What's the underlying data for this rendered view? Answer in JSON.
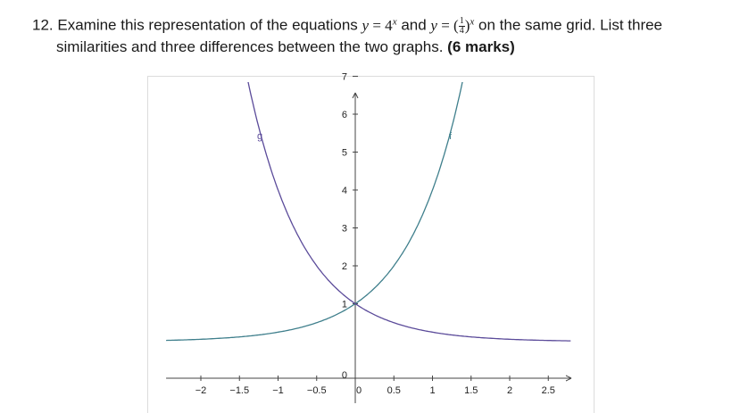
{
  "question": {
    "number": "12.",
    "text_a": "Examine this representation of the equations",
    "eq1_lhs": "y",
    "eq1_eq": " = 4",
    "eq1_exp": "x",
    "text_and": "and",
    "eq2_lhs": "y",
    "eq2_eq": " = (",
    "eq2_num": "1",
    "eq2_den": "4",
    "eq2_close": ")",
    "eq2_exp": "x",
    "text_b": "on the same grid. List three",
    "line2": "similarities and three differences between the two graphs.",
    "marks": "(6 marks)"
  },
  "chart_data": {
    "type": "line",
    "title": "",
    "xlabel": "",
    "ylabel": "",
    "xlim": [
      -2.45,
      2.8
    ],
    "ylim": [
      -0.1,
      7.6
    ],
    "x_ticks": [
      -2,
      -1.5,
      -1,
      -0.5,
      0,
      0.5,
      1,
      1.5,
      2,
      2.5
    ],
    "x_tick_labels": [
      "−2",
      "−1.5",
      "−1",
      "−0.5",
      "0",
      "0.5",
      "1",
      "1.5",
      "2",
      "2.5"
    ],
    "y_ticks": [
      0,
      1,
      2,
      3,
      4,
      5,
      6,
      7
    ],
    "y_tick_labels": [
      "0",
      "1",
      "2",
      "3",
      "4",
      "5",
      "6",
      "7"
    ],
    "grid": false,
    "series": [
      {
        "name": "f",
        "function": "4^x",
        "color": "#3f7f8c",
        "x": [
          -2.45,
          -2.0,
          -1.5,
          -1.0,
          -0.5,
          0.0,
          0.25,
          0.5,
          0.75,
          1.0,
          1.25,
          1.45
        ],
        "y": [
          0.0335,
          0.0625,
          0.125,
          0.25,
          0.5,
          1.0,
          1.414,
          2.0,
          2.828,
          4.0,
          5.657,
          7.464
        ]
      },
      {
        "name": "g",
        "function": "(1/4)^x",
        "color": "#5b4b9a",
        "x": [
          -1.5,
          -1.25,
          -1.0,
          -0.75,
          -0.5,
          -0.25,
          0.0,
          0.5,
          1.0,
          1.5,
          2.0,
          2.5,
          2.8
        ],
        "y": [
          8.0,
          5.657,
          4.0,
          2.828,
          2.0,
          1.414,
          1.0,
          0.5,
          0.25,
          0.125,
          0.0625,
          0.0313,
          0.0206
        ]
      }
    ]
  },
  "colors": {
    "axis": "#444444",
    "text": "#1a1a1a"
  }
}
